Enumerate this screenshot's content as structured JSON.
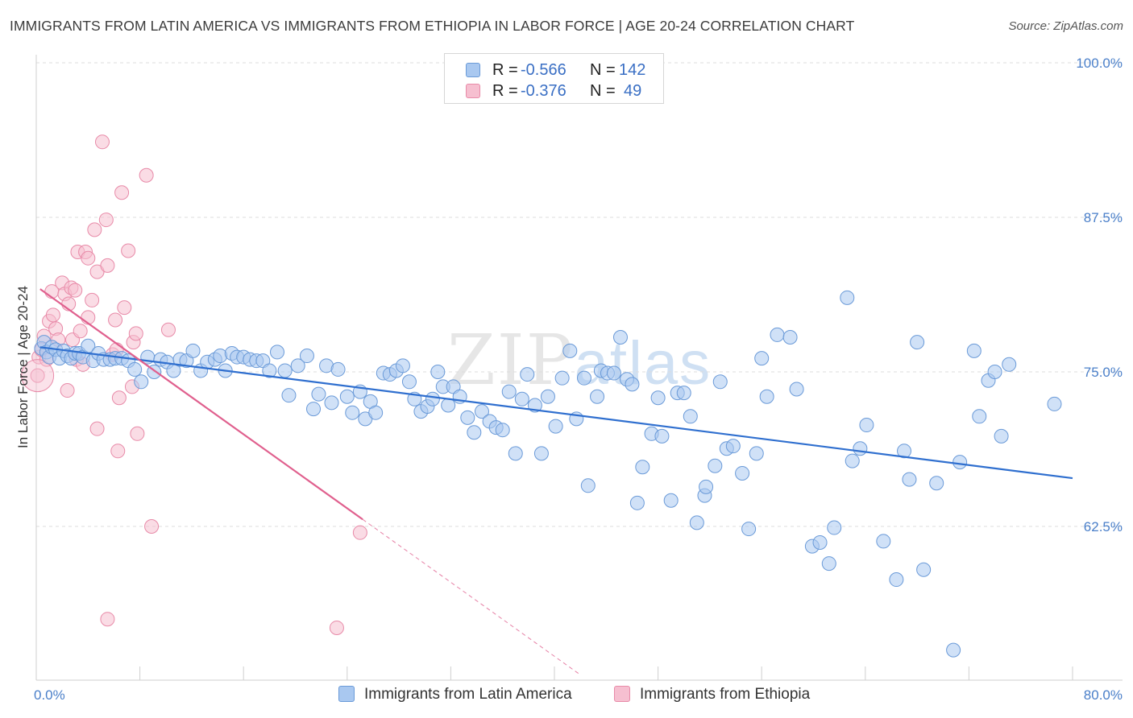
{
  "header": {
    "title": "IMMIGRANTS FROM LATIN AMERICA VS IMMIGRANTS FROM ETHIOPIA IN LABOR FORCE | AGE 20-24 CORRELATION CHART",
    "source": "Source: ZipAtlas.com"
  },
  "watermark": {
    "zip": "ZIP",
    "atlas": "atlas"
  },
  "legend_top": {
    "rows": [
      {
        "r_label": "R =",
        "r_value": "-0.566",
        "n_label": "N =",
        "n_value": "142"
      },
      {
        "r_label": "R =",
        "r_value": "-0.376",
        "n_label": "N =",
        "n_value": "49"
      }
    ]
  },
  "legend_bottom": {
    "items": [
      {
        "label": "Immigrants from Latin America"
      },
      {
        "label": "Immigrants from Ethiopia"
      }
    ]
  },
  "colors": {
    "series_a_fill": "#a9c8f0",
    "series_a_stroke": "#6a9ad8",
    "series_a_line": "#2f6fcf",
    "series_b_fill": "#f6bfd0",
    "series_b_stroke": "#e88aa8",
    "series_b_line": "#e0608e",
    "tick_text": "#4a7fc9",
    "grid": "#dcdcdc"
  },
  "chart_data": {
    "type": "scatter",
    "title": "IMMIGRANTS FROM LATIN AMERICA VS IMMIGRANTS FROM ETHIOPIA IN LABOR FORCE | AGE 20-24 CORRELATION CHART",
    "xlabel": "",
    "ylabel": "In Labor Force | Age 20-24",
    "xlim": [
      0,
      80
    ],
    "ylim": [
      51.5,
      102
    ],
    "x_ticks_labels": [
      "0.0%",
      "80.0%"
    ],
    "y_ticks": [
      62.5,
      75.0,
      87.5,
      100.0
    ],
    "y_tick_labels": [
      "62.5%",
      "75.0%",
      "87.5%",
      "100.0%"
    ],
    "grid": "horizontal dashed",
    "legend_placement": "top-center",
    "series": [
      {
        "name": "Immigrants from Latin America",
        "r": -0.566,
        "n": 142,
        "trend": {
          "x": [
            0.3,
            80
          ],
          "y": [
            77.0,
            66.4
          ]
        },
        "trend_solid_to": 80,
        "points": [
          [
            0.4,
            76.9
          ],
          [
            0.6,
            77.4
          ],
          [
            0.8,
            76.6
          ],
          [
            1.0,
            76.2
          ],
          [
            1.2,
            77.0
          ],
          [
            1.5,
            76.8
          ],
          [
            1.8,
            76.1
          ],
          [
            2.1,
            76.7
          ],
          [
            2.4,
            76.3
          ],
          [
            2.7,
            76.1
          ],
          [
            3.0,
            76.5
          ],
          [
            3.3,
            76.5
          ],
          [
            3.6,
            76.2
          ],
          [
            4.0,
            77.1
          ],
          [
            4.4,
            75.9
          ],
          [
            4.8,
            76.5
          ],
          [
            5.2,
            76.0
          ],
          [
            5.7,
            76.0
          ],
          [
            6.1,
            76.1
          ],
          [
            6.6,
            76.1
          ],
          [
            7.1,
            75.9
          ],
          [
            7.6,
            75.2
          ],
          [
            8.1,
            74.2
          ],
          [
            8.6,
            76.2
          ],
          [
            9.1,
            75.0
          ],
          [
            9.6,
            76.0
          ],
          [
            10.1,
            75.8
          ],
          [
            10.6,
            75.1
          ],
          [
            11.1,
            76.0
          ],
          [
            11.6,
            75.9
          ],
          [
            12.1,
            76.7
          ],
          [
            12.7,
            75.1
          ],
          [
            13.2,
            75.8
          ],
          [
            13.8,
            76.0
          ],
          [
            14.2,
            76.3
          ],
          [
            14.6,
            75.1
          ],
          [
            15.1,
            76.5
          ],
          [
            15.5,
            76.2
          ],
          [
            16.0,
            76.2
          ],
          [
            16.5,
            76.0
          ],
          [
            17.0,
            75.9
          ],
          [
            17.5,
            75.9
          ],
          [
            18.0,
            75.1
          ],
          [
            18.6,
            76.6
          ],
          [
            19.2,
            75.1
          ],
          [
            19.5,
            73.1
          ],
          [
            20.2,
            75.5
          ],
          [
            20.9,
            76.3
          ],
          [
            21.4,
            72.0
          ],
          [
            21.8,
            73.2
          ],
          [
            22.4,
            75.5
          ],
          [
            22.8,
            72.5
          ],
          [
            23.3,
            75.2
          ],
          [
            24.0,
            73.0
          ],
          [
            24.4,
            71.7
          ],
          [
            25.0,
            73.4
          ],
          [
            25.4,
            71.2
          ],
          [
            25.8,
            72.6
          ],
          [
            26.2,
            71.7
          ],
          [
            26.8,
            74.9
          ],
          [
            27.3,
            74.8
          ],
          [
            27.8,
            75.1
          ],
          [
            28.3,
            75.5
          ],
          [
            28.8,
            74.2
          ],
          [
            29.2,
            72.8
          ],
          [
            29.7,
            71.8
          ],
          [
            30.2,
            72.2
          ],
          [
            30.6,
            72.8
          ],
          [
            31.0,
            75.0
          ],
          [
            31.4,
            73.8
          ],
          [
            31.8,
            72.3
          ],
          [
            32.2,
            73.8
          ],
          [
            32.7,
            73.0
          ],
          [
            33.3,
            71.3
          ],
          [
            33.8,
            70.1
          ],
          [
            34.4,
            71.8
          ],
          [
            35.0,
            71.0
          ],
          [
            35.5,
            70.5
          ],
          [
            36.0,
            70.3
          ],
          [
            36.5,
            73.4
          ],
          [
            37.0,
            68.4
          ],
          [
            37.5,
            72.8
          ],
          [
            37.9,
            74.8
          ],
          [
            38.5,
            72.3
          ],
          [
            39.0,
            68.4
          ],
          [
            39.5,
            73.0
          ],
          [
            40.1,
            70.6
          ],
          [
            40.6,
            74.5
          ],
          [
            41.2,
            76.7
          ],
          [
            41.7,
            71.2
          ],
          [
            42.3,
            74.5
          ],
          [
            42.6,
            65.8
          ],
          [
            43.3,
            73.0
          ],
          [
            43.6,
            75.1
          ],
          [
            44.1,
            74.9
          ],
          [
            44.6,
            74.9
          ],
          [
            45.1,
            77.8
          ],
          [
            45.6,
            74.4
          ],
          [
            46.0,
            74.0
          ],
          [
            46.4,
            64.4
          ],
          [
            46.8,
            67.3
          ],
          [
            47.5,
            70.0
          ],
          [
            48.0,
            72.9
          ],
          [
            48.3,
            69.8
          ],
          [
            49.0,
            64.6
          ],
          [
            49.5,
            73.3
          ],
          [
            50.0,
            73.3
          ],
          [
            50.5,
            71.4
          ],
          [
            51.0,
            62.8
          ],
          [
            51.6,
            65.0
          ],
          [
            51.7,
            65.7
          ],
          [
            52.4,
            67.4
          ],
          [
            52.8,
            74.2
          ],
          [
            53.3,
            68.8
          ],
          [
            53.8,
            69.0
          ],
          [
            54.5,
            66.8
          ],
          [
            55.0,
            62.3
          ],
          [
            55.6,
            68.4
          ],
          [
            56.0,
            76.1
          ],
          [
            56.4,
            73.0
          ],
          [
            57.2,
            78.0
          ],
          [
            58.2,
            77.8
          ],
          [
            58.7,
            73.6
          ],
          [
            59.9,
            60.9
          ],
          [
            60.5,
            61.2
          ],
          [
            61.2,
            59.5
          ],
          [
            61.6,
            62.4
          ],
          [
            62.6,
            81.0
          ],
          [
            63.0,
            67.8
          ],
          [
            63.6,
            68.8
          ],
          [
            64.1,
            70.7
          ],
          [
            65.4,
            61.3
          ],
          [
            66.4,
            58.2
          ],
          [
            67.0,
            68.6
          ],
          [
            67.4,
            66.3
          ],
          [
            68.0,
            77.4
          ],
          [
            68.5,
            59.0
          ],
          [
            69.5,
            66.0
          ],
          [
            70.8,
            52.5
          ],
          [
            71.3,
            67.7
          ],
          [
            72.4,
            76.7
          ],
          [
            72.8,
            71.4
          ],
          [
            73.5,
            74.3
          ],
          [
            74.0,
            75.0
          ],
          [
            74.5,
            69.8
          ],
          [
            75.1,
            75.6
          ],
          [
            78.6,
            72.4
          ]
        ]
      },
      {
        "name": "Immigrants from Ethiopia",
        "r": -0.376,
        "n": 49,
        "trend": {
          "x": [
            0.3,
            42
          ],
          "y": [
            81.7,
            50.5
          ]
        },
        "trend_solid_to": 25.2,
        "points": [
          [
            0.1,
            74.7
          ],
          [
            0.2,
            76.2
          ],
          [
            0.4,
            76.8
          ],
          [
            0.6,
            77.9
          ],
          [
            0.8,
            76.0
          ],
          [
            1.0,
            79.1
          ],
          [
            1.2,
            81.5
          ],
          [
            1.3,
            79.6
          ],
          [
            1.5,
            78.5
          ],
          [
            1.7,
            77.6
          ],
          [
            2.0,
            82.2
          ],
          [
            2.2,
            81.3
          ],
          [
            2.4,
            73.5
          ],
          [
            2.5,
            80.5
          ],
          [
            2.7,
            81.8
          ],
          [
            2.8,
            77.6
          ],
          [
            3.0,
            81.6
          ],
          [
            3.1,
            76.0
          ],
          [
            3.2,
            84.7
          ],
          [
            3.4,
            78.3
          ],
          [
            3.6,
            75.6
          ],
          [
            3.8,
            84.7
          ],
          [
            4.0,
            84.2
          ],
          [
            4.0,
            79.4
          ],
          [
            4.3,
            80.8
          ],
          [
            4.5,
            86.5
          ],
          [
            4.7,
            83.1
          ],
          [
            4.7,
            70.4
          ],
          [
            5.1,
            93.6
          ],
          [
            5.4,
            87.3
          ],
          [
            5.5,
            83.6
          ],
          [
            5.5,
            55.0
          ],
          [
            5.9,
            76.4
          ],
          [
            6.1,
            79.2
          ],
          [
            6.2,
            76.8
          ],
          [
            6.3,
            68.6
          ],
          [
            6.4,
            72.9
          ],
          [
            6.6,
            89.5
          ],
          [
            6.8,
            80.2
          ],
          [
            7.1,
            84.8
          ],
          [
            7.4,
            73.8
          ],
          [
            7.5,
            77.4
          ],
          [
            7.7,
            78.1
          ],
          [
            7.8,
            70.0
          ],
          [
            8.5,
            90.9
          ],
          [
            8.9,
            62.5
          ],
          [
            10.2,
            78.4
          ],
          [
            23.2,
            54.3
          ],
          [
            25.0,
            62.0
          ]
        ]
      }
    ]
  }
}
